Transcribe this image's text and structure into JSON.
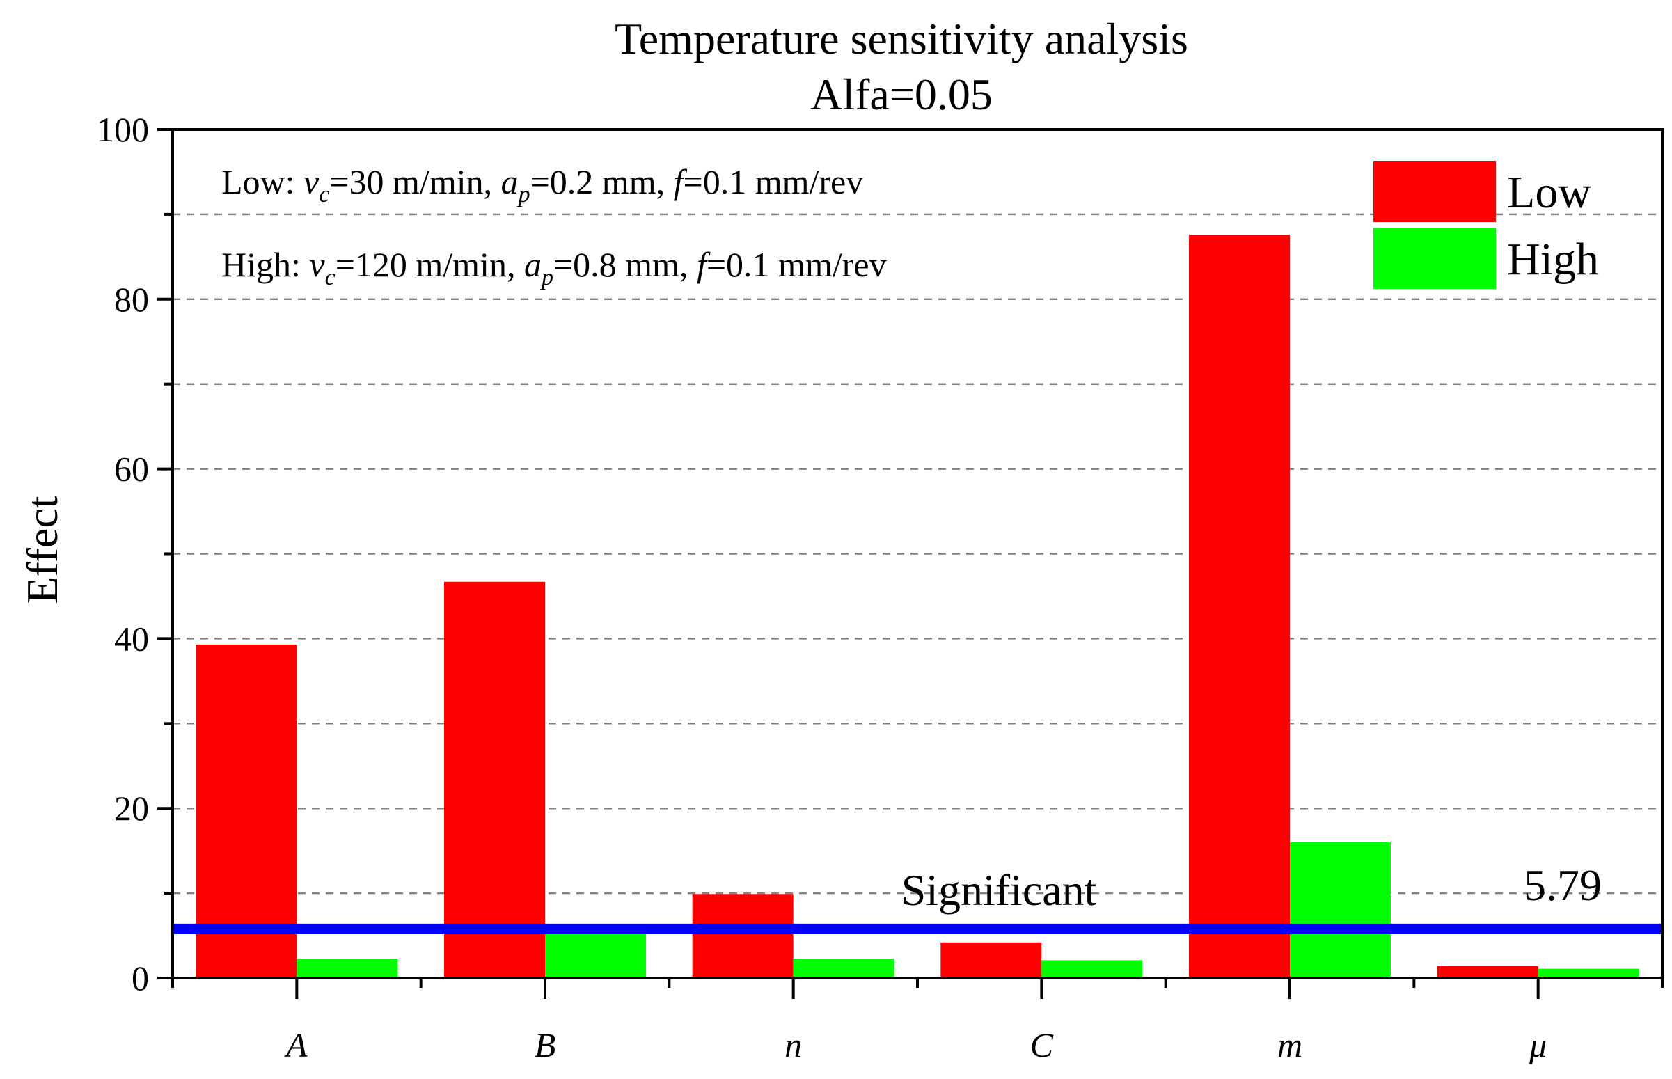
{
  "chart_data": {
    "type": "bar",
    "title": "Temperature sensitivity analysis",
    "subtitle": "Alfa=0.05",
    "xlabel": "",
    "ylabel": "Effect",
    "ylim": [
      0,
      100
    ],
    "yticks": [
      "0",
      "20",
      "40",
      "60",
      "80",
      "100"
    ],
    "categories": [
      "A",
      "B",
      "n",
      "C",
      "m",
      "μ"
    ],
    "series": [
      {
        "name": "Low",
        "color": "#ff0000",
        "values": [
          39.3,
          46.7,
          9.9,
          4.2,
          87.6,
          1.4
        ]
      },
      {
        "name": "High",
        "color": "#00ff00",
        "values": [
          2.3,
          5.6,
          2.3,
          2.1,
          16.0,
          1.1
        ]
      }
    ],
    "threshold": {
      "value": 5.79,
      "label": "Significant",
      "value_label": "5.79",
      "color": "#0000ff"
    },
    "legend_position": "top-right",
    "grid": "dashed-horizontal",
    "annotations": {
      "low": {
        "prefix": "Low: ",
        "vc_symbol": "v",
        "vc_sub": "c",
        "vc_value": "=30 m/min, ",
        "ap_symbol": "a",
        "ap_sub": "p",
        "ap_value": "=0.2 mm, ",
        "f_symbol": "f",
        "f_value": "=0.1 mm/rev"
      },
      "high": {
        "prefix": "High: ",
        "vc_symbol": "v",
        "vc_sub": "c",
        "vc_value": "=120 m/min, ",
        "ap_symbol": "a",
        "ap_sub": "p",
        "ap_value": "=0.8 mm, ",
        "f_symbol": "f",
        "f_value": "=0.1 mm/rev"
      }
    }
  }
}
